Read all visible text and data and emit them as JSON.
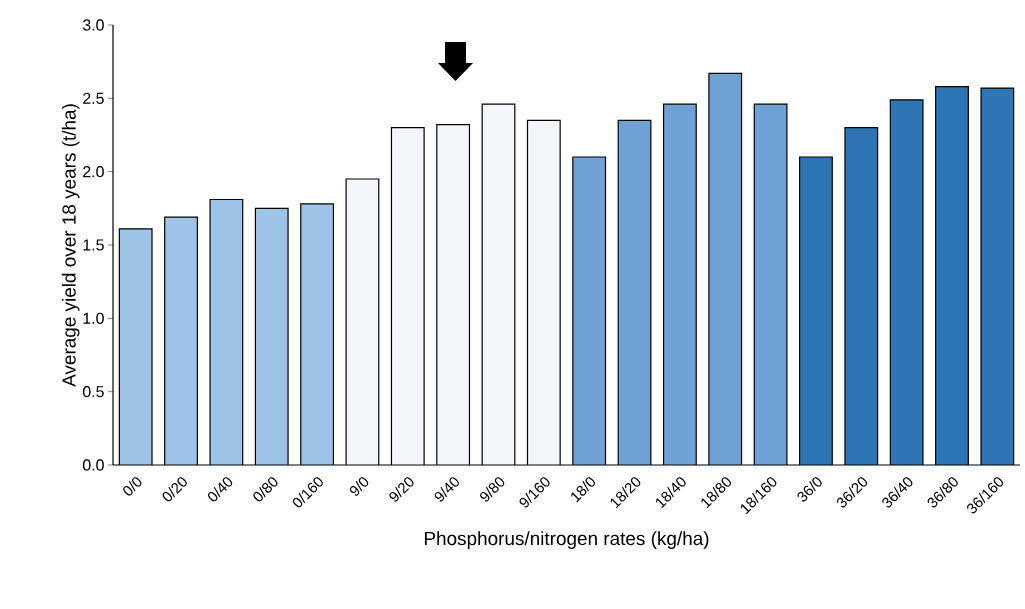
{
  "chart_data": {
    "type": "bar",
    "xlabel": "Phosphorus/nitrogen rates (kg/ha)",
    "ylabel": "Average yield over 18 years (t/ha)",
    "categories": [
      "0/0",
      "0/20",
      "0/40",
      "0/80",
      "0/160",
      "9/0",
      "9/20",
      "9/40",
      "9/80",
      "9/160",
      "18/0",
      "18/20",
      "18/40",
      "18/80",
      "18/160",
      "36/0",
      "36/20",
      "36/40",
      "36/80",
      "36/160"
    ],
    "values": [
      1.61,
      1.69,
      1.81,
      1.75,
      1.78,
      1.95,
      2.3,
      2.32,
      2.46,
      2.35,
      2.1,
      2.35,
      2.46,
      2.67,
      2.46,
      2.1,
      2.3,
      2.49,
      2.58,
      2.57
    ],
    "colors": [
      "#9dc3e6",
      "#9dc3e6",
      "#9dc3e6",
      "#9dc3e6",
      "#9dc3e6",
      "#f2f6fb",
      "#f2f6fb",
      "#f2f6fb",
      "#f2f6fb",
      "#f2f6fb",
      "#6fa0d6",
      "#6fa0d6",
      "#6fa0d6",
      "#6fa0d6",
      "#6fa0d6",
      "#2e75b6",
      "#2e75b6",
      "#2e75b6",
      "#2e75b6",
      "#2e75b6"
    ],
    "ylim": [
      0,
      3
    ],
    "yticks": [
      {
        "value": 0,
        "label": "0.0"
      },
      {
        "value": 0.5,
        "label": "0.5"
      },
      {
        "value": 1,
        "label": "1.0"
      },
      {
        "value": 1.5,
        "label": "1.5"
      },
      {
        "value": 2,
        "label": "2.0"
      },
      {
        "value": 2.5,
        "label": "2.5"
      },
      {
        "value": 3,
        "label": "3.0"
      }
    ],
    "grid": false
  }
}
